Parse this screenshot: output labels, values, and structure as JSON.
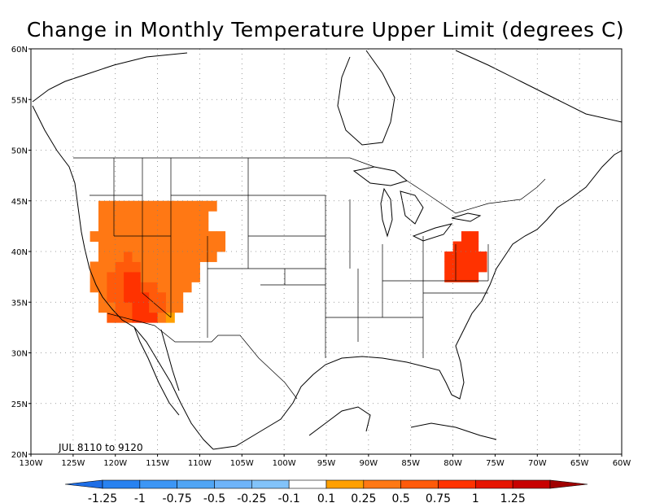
{
  "title": "Change in Monthly Temperature Upper Limit (degrees C)",
  "period_label": "JUL 8110 to 9120",
  "lat_ticks": [
    {
      "lat": 60,
      "label": "60N"
    },
    {
      "lat": 55,
      "label": "55N"
    },
    {
      "lat": 50,
      "label": "50N"
    },
    {
      "lat": 45,
      "label": "45N"
    },
    {
      "lat": 40,
      "label": "40N"
    },
    {
      "lat": 35,
      "label": "35N"
    },
    {
      "lat": 30,
      "label": "30N"
    },
    {
      "lat": 25,
      "label": "25N"
    },
    {
      "lat": 20,
      "label": "20N"
    }
  ],
  "lon_ticks": [
    {
      "lon": -130,
      "label": "130W"
    },
    {
      "lon": -125,
      "label": "125W"
    },
    {
      "lon": -120,
      "label": "120W"
    },
    {
      "lon": -115,
      "label": "115W"
    },
    {
      "lon": -110,
      "label": "110W"
    },
    {
      "lon": -105,
      "label": "105W"
    },
    {
      "lon": -100,
      "label": "100W"
    },
    {
      "lon": -95,
      "label": "95W"
    },
    {
      "lon": -90,
      "label": "90W"
    },
    {
      "lon": -85,
      "label": "85W"
    },
    {
      "lon": -80,
      "label": "80W"
    },
    {
      "lon": -75,
      "label": "75W"
    },
    {
      "lon": -70,
      "label": "70W"
    },
    {
      "lon": -65,
      "label": "65W"
    },
    {
      "lon": -60,
      "label": "60W"
    }
  ],
  "colorbar": {
    "labels": [
      "-1.25",
      "-1",
      "-0.75",
      "-0.5",
      "-0.25",
      "-0.1",
      "0.1",
      "0.25",
      "0.5",
      "0.75",
      "1",
      "1.25"
    ],
    "colors": [
      "#1e6ee6",
      "#2882f0",
      "#3c96f5",
      "#50a5f5",
      "#6eb4fa",
      "#82c3fa",
      "#ffffff",
      "#ffa000",
      "#ff7814",
      "#ff5a0a",
      "#ff3200",
      "#e61400",
      "#c80000",
      "#a00000"
    ]
  },
  "grid": {
    "lon0": -125,
    "lat0": 33,
    "dlon": 1.0,
    "dlat": 1.0,
    "rows": [
      "....44455532........................................",
      "...3344554433.......................................",
      "...3445554433.......................................",
      "..334455443333......................................",
      "..3344553333333.............................5555....",
      "..3334443333333.............................55555...",
      "...33343333333333...........................55555...",
      "...333333333333333...........................555....",
      "..3333333333333333............................55....",
      "...3333333333333.....................................",
      "...3333333333333.....................................",
      "...33333333333333...................................."
    ]
  }
}
